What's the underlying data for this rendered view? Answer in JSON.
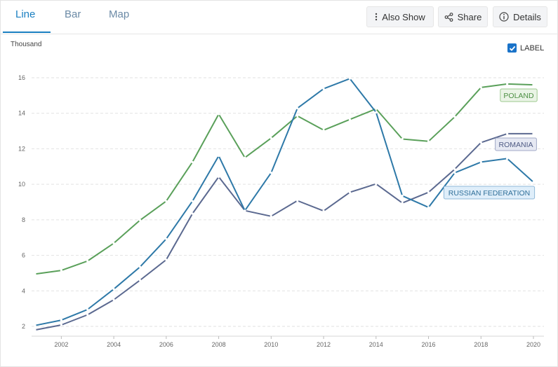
{
  "tabs": [
    {
      "label": "Line",
      "active": true
    },
    {
      "label": "Bar",
      "active": false
    },
    {
      "label": "Map",
      "active": false
    }
  ],
  "actions": {
    "also_show": "Also Show",
    "share": "Share",
    "details": "Details"
  },
  "label_toggle": {
    "text": "LABEL",
    "checked": true
  },
  "chart_data": {
    "type": "line",
    "ylabel": "Thousand",
    "xlim": [
      2001,
      2020
    ],
    "ylim": [
      2,
      16
    ],
    "x_ticks": [
      2002,
      2004,
      2006,
      2008,
      2010,
      2012,
      2014,
      2016,
      2018,
      2020
    ],
    "y_ticks": [
      2,
      4,
      6,
      8,
      10,
      12,
      14,
      16
    ],
    "grid": "horizontal dashed",
    "x": [
      2001,
      2002,
      2003,
      2004,
      2005,
      2006,
      2007,
      2008,
      2009,
      2010,
      2011,
      2012,
      2013,
      2014,
      2015,
      2016,
      2017,
      2018,
      2019,
      2020
    ],
    "series": [
      {
        "name": "POLAND",
        "color": "#5aa05a",
        "values": [
          4.95,
          5.15,
          5.68,
          6.68,
          7.98,
          9.05,
          11.25,
          13.95,
          11.5,
          12.6,
          13.85,
          13.05,
          13.65,
          14.25,
          12.55,
          12.42,
          13.8,
          15.45,
          15.65,
          15.6
        ]
      },
      {
        "name": "ROMANIA",
        "color": "#5b6990",
        "values": [
          1.8,
          2.08,
          2.65,
          3.5,
          4.6,
          5.75,
          8.35,
          10.42,
          8.52,
          8.2,
          9.08,
          8.5,
          9.55,
          10.02,
          8.95,
          9.55,
          10.85,
          12.35,
          12.85,
          12.85
        ]
      },
      {
        "name": "RUSSIAN FEDERATION",
        "color": "#2e79a8",
        "values": [
          2.05,
          2.35,
          2.95,
          4.1,
          5.35,
          6.92,
          9.05,
          11.6,
          8.52,
          10.65,
          14.28,
          15.38,
          15.95,
          14.05,
          9.35,
          8.7,
          10.65,
          11.25,
          11.45,
          10.12
        ]
      }
    ]
  }
}
